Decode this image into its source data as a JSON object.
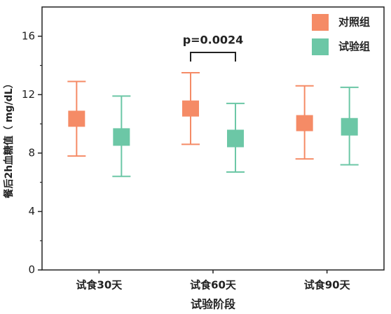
{
  "chart_data": {
    "type": "box",
    "categories": [
      "试食30天",
      "试食60天",
      "试食90天"
    ],
    "x_label": "试验阶段",
    "y_label": "餐后2h血糖值（ mg/dL）",
    "ylim": [
      0,
      18
    ],
    "yticks": [
      0,
      4,
      8,
      12,
      16
    ],
    "minor_yticks": [
      2,
      6,
      10,
      14
    ],
    "legend": "upper right",
    "series": [
      {
        "name": "对照组",
        "color": "#f58b66",
        "low": [
          7.8,
          8.6,
          7.6
        ],
        "box_low": [
          9.8,
          10.5,
          9.5
        ],
        "box_high": [
          10.9,
          11.6,
          10.6
        ],
        "high": [
          12.9,
          13.5,
          12.6
        ]
      },
      {
        "name": "试验组",
        "color": "#6cc7a6",
        "low": [
          6.4,
          6.7,
          7.2
        ],
        "box_low": [
          8.5,
          8.4,
          9.2
        ],
        "box_high": [
          9.7,
          9.6,
          10.4
        ],
        "high": [
          11.9,
          11.4,
          12.5
        ]
      }
    ],
    "annotation": {
      "text": "p=0.0024",
      "category": 1
    }
  }
}
